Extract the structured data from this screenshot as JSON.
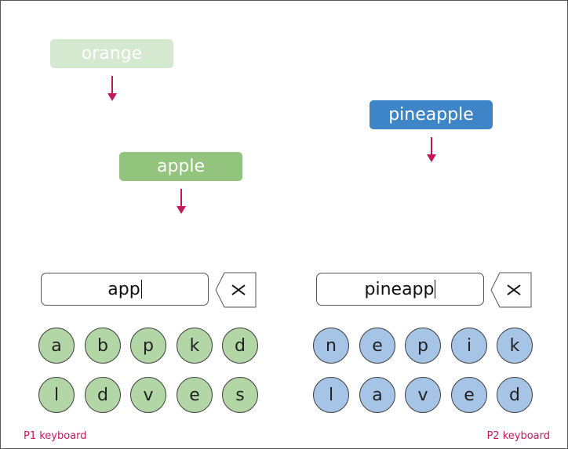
{
  "colors": {
    "faded_word": "#d5e8d0",
    "p1_word": "#93c47d",
    "p2_word": "#3d85c6",
    "arrow": "#c2185b",
    "p1_key": "#b3d6a6",
    "p2_key": "#a5c4e6"
  },
  "falling_words": {
    "faded": "orange",
    "p1": "apple",
    "p2": "pineapple"
  },
  "p1": {
    "input_value": "app",
    "keys_row1": [
      "a",
      "b",
      "p",
      "k",
      "d"
    ],
    "keys_row2": [
      "l",
      "d",
      "v",
      "e",
      "s"
    ],
    "label": "P1 keyboard"
  },
  "p2": {
    "input_value": "pineapp",
    "keys_row1": [
      "n",
      "e",
      "p",
      "i",
      "k"
    ],
    "keys_row2": [
      "l",
      "a",
      "v",
      "e",
      "d"
    ],
    "label": "P2 keyboard"
  },
  "icons": {
    "backspace": "backspace-icon"
  }
}
